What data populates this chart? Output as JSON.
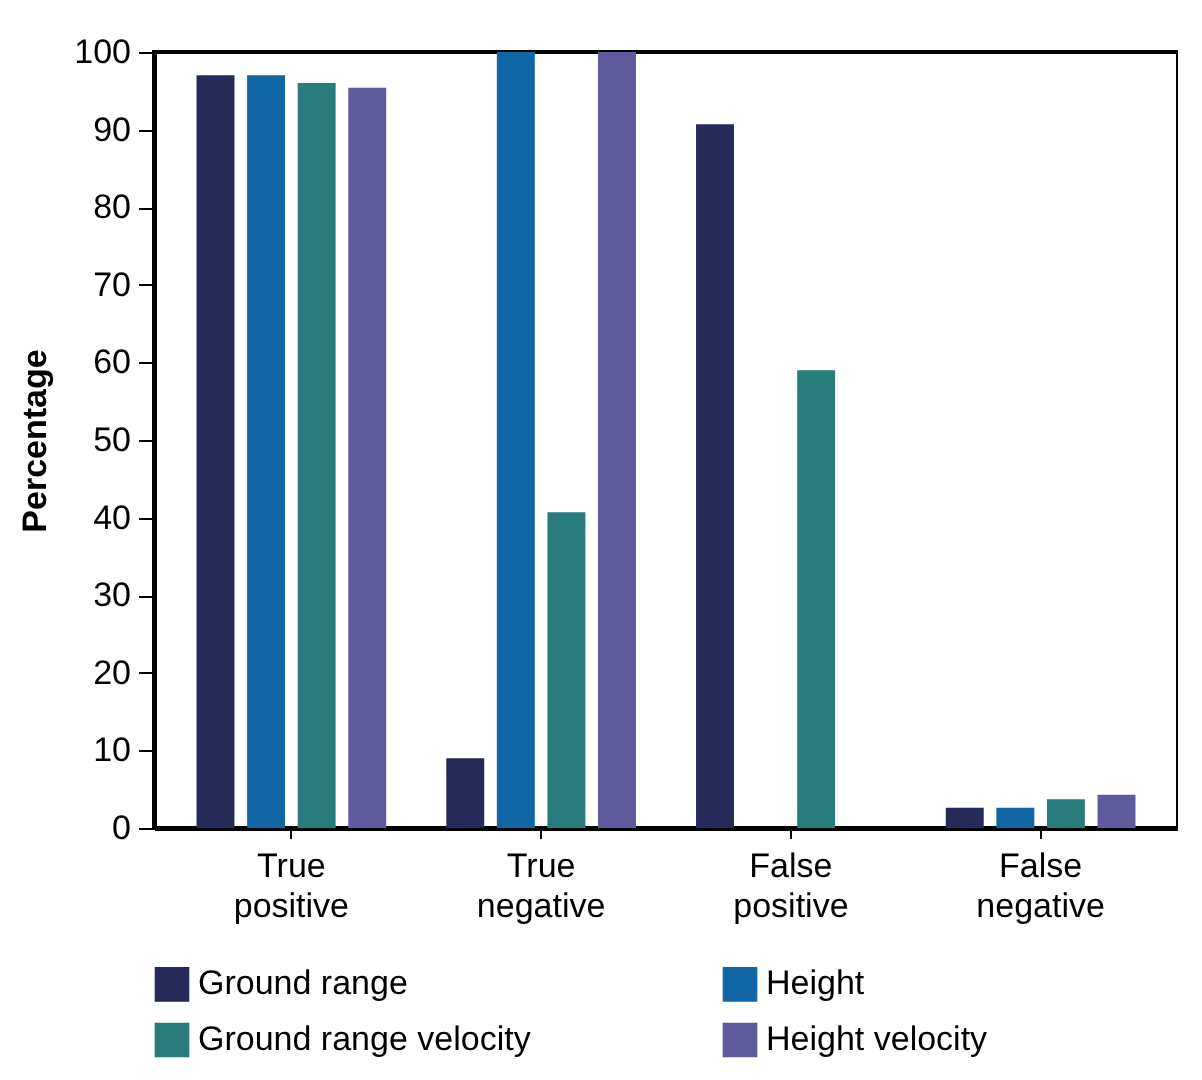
{
  "chart_data": {
    "type": "bar",
    "ylabel": "Percentage",
    "categories": [
      "True positive",
      "True negative",
      "False positive",
      "False negative"
    ],
    "series": [
      {
        "name": "Ground range",
        "color": "#252a59",
        "values": [
          97,
          9,
          90.7,
          2.6
        ]
      },
      {
        "name": "Height",
        "color": "#1167a6",
        "values": [
          97,
          100,
          0,
          2.6
        ]
      },
      {
        "name": "Ground range velocity",
        "color": "#287d7c",
        "values": [
          96,
          40.7,
          59,
          3.7
        ]
      },
      {
        "name": "Height velocity",
        "color": "#5e5a9b",
        "values": [
          95.4,
          100,
          0,
          4.3
        ]
      }
    ],
    "ylim": [
      0,
      100
    ],
    "yticks": [
      0,
      10,
      20,
      30,
      40,
      50,
      60,
      70,
      80,
      90,
      100
    ],
    "grid": false,
    "legend": "bottom"
  }
}
